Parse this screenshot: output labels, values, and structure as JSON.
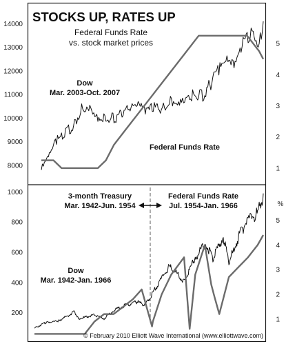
{
  "chart_data": [
    {
      "type": "line",
      "title": "STOCKS UP, RATES UP",
      "subtitle_lines": [
        "Federal Funds Rate",
        "vs. stock market prices"
      ],
      "x_range": [
        "2003-03",
        "2007-10"
      ],
      "y_left": {
        "ticks": [
          "14000",
          "13000",
          "12000",
          "11000",
          "10000",
          "9000",
          "8000"
        ],
        "ylim": [
          7500,
          14300
        ]
      },
      "y_right": {
        "ticks": [
          "5",
          "4",
          "3",
          "2",
          "1"
        ],
        "ylim": [
          0.6,
          5.6
        ]
      },
      "annotations": {
        "dow": [
          "Dow",
          "Mar. 2003-Oct. 2007"
        ],
        "rate": "Federal Funds Rate"
      },
      "colors": {
        "dow": "#111111",
        "rate": "#6b6b6b"
      },
      "series": [
        {
          "name": "Dow",
          "axis": "left",
          "x": [
            "2003-03",
            "2003-05",
            "2003-07",
            "2003-09",
            "2003-11",
            "2004-01",
            "2004-03",
            "2004-05",
            "2004-07",
            "2004-09",
            "2004-11",
            "2005-01",
            "2005-03",
            "2005-05",
            "2005-07",
            "2005-09",
            "2005-11",
            "2006-01",
            "2006-03",
            "2006-05",
            "2006-07",
            "2006-09",
            "2006-11",
            "2007-01",
            "2007-03",
            "2007-05",
            "2007-07",
            "2007-09",
            "2007-10"
          ],
          "values": [
            7900,
            8500,
            9200,
            9500,
            9800,
            10500,
            10700,
            10200,
            10100,
            10100,
            10300,
            10500,
            10600,
            10400,
            10600,
            10500,
            10800,
            10900,
            11100,
            11100,
            11100,
            11600,
            12200,
            12500,
            12300,
            13400,
            13800,
            13300,
            14100
          ]
        },
        {
          "name": "Federal Funds Rate",
          "axis": "right",
          "x": [
            "2003-03",
            "2003-06",
            "2003-08",
            "2003-12",
            "2004-03",
            "2004-05",
            "2004-07",
            "2004-09",
            "2004-12",
            "2005-03",
            "2005-06",
            "2005-09",
            "2005-12",
            "2006-03",
            "2006-06",
            "2006-08",
            "2007-06",
            "2007-09",
            "2007-10"
          ],
          "values": [
            1.25,
            1.25,
            1.0,
            1.0,
            1.0,
            1.0,
            1.25,
            1.75,
            2.25,
            2.75,
            3.25,
            3.75,
            4.25,
            4.75,
            5.25,
            5.25,
            5.25,
            4.75,
            4.5
          ]
        }
      ]
    },
    {
      "type": "line",
      "x_range": [
        "1942-03",
        "1966-01"
      ],
      "y_left": {
        "ticks": [
          "1000",
          "800",
          "600",
          "400",
          "200"
        ],
        "ylim": [
          80,
          1020
        ]
      },
      "y_right": {
        "unit": "%",
        "ticks": [
          "5",
          "4",
          "3",
          "2",
          "1"
        ],
        "ylim": [
          0.3,
          5.6
        ]
      },
      "annotations": {
        "left_period": [
          "3-month Treasury",
          "Mar. 1942-Jun. 1954"
        ],
        "right_period": [
          "Federal Funds Rate",
          "Jul. 1954-Jan. 1966"
        ],
        "dow": [
          "Dow",
          "Mar. 1942-Jan. 1966"
        ]
      },
      "colors": {
        "dow": "#111111",
        "rate": "#6b6b6b"
      },
      "series": [
        {
          "name": "Dow",
          "axis": "left",
          "x": [
            "1942-03",
            "1943-06",
            "1944-09",
            "1946-05",
            "1946-11",
            "1948-06",
            "1949-06",
            "1950-06",
            "1951-06",
            "1952-12",
            "1953-09",
            "1954-06",
            "1955-06",
            "1956-04",
            "1957-10",
            "1958-12",
            "1960-01",
            "1960-10",
            "1961-11",
            "1962-06",
            "1963-06",
            "1964-06",
            "1965-06",
            "1966-01"
          ],
          "values": [
            100,
            140,
            150,
            210,
            165,
            190,
            165,
            220,
            250,
            280,
            255,
            330,
            440,
            520,
            420,
            580,
            680,
            570,
            720,
            540,
            720,
            840,
            880,
            990
          ]
        },
        {
          "name": "Federal Funds Rate",
          "axis": "right",
          "x": [
            "1942-03",
            "1947-06",
            "1948-06",
            "1949-06",
            "1950-06",
            "1951-06",
            "1952-06",
            "1953-05",
            "1954-06",
            "1954-07",
            "1955-06",
            "1956-06",
            "1957-10",
            "1958-05",
            "1958-12",
            "1959-12",
            "1960-08",
            "1960-12",
            "1961-06",
            "1962-06",
            "1963-06",
            "1964-06",
            "1965-06",
            "1966-01"
          ],
          "values": [
            0.4,
            0.4,
            0.9,
            1.2,
            1.2,
            1.5,
            1.8,
            2.2,
            0.7,
            0.9,
            2.0,
            2.8,
            3.5,
            0.6,
            2.8,
            4.0,
            2.4,
            1.9,
            1.2,
            2.7,
            3.1,
            3.5,
            4.0,
            4.4
          ]
        }
      ]
    }
  ],
  "copyright": "© February 2010 Elliott Wave International (www.elliottwave.com)"
}
